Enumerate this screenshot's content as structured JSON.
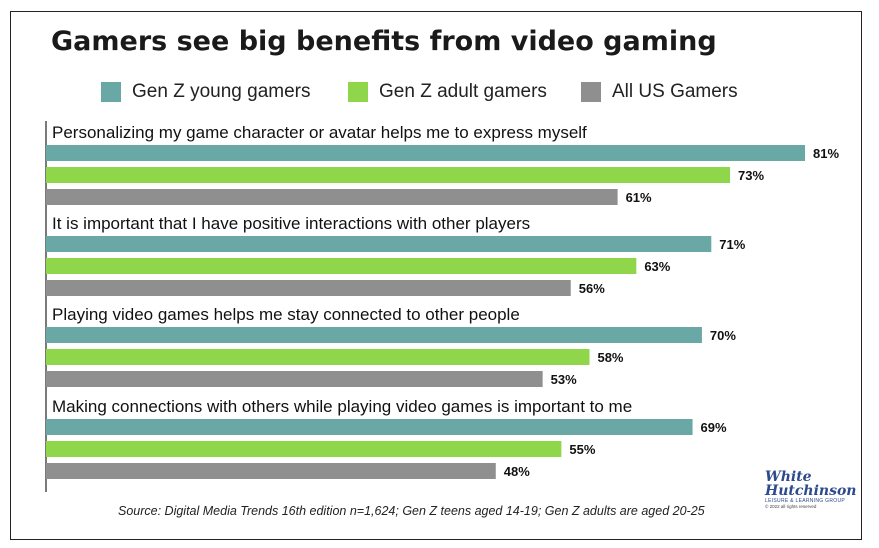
{
  "chart_data": {
    "type": "bar",
    "orientation": "horizontal",
    "title": "Gamers see big benefits from video gaming",
    "categories": [
      "Personalizing my game character or avatar helps me to express myself",
      "It is important that I have positive interactions with other players",
      "Playing video games helps me stay connected to other people",
      "Making connections with others while playing video games is important to me"
    ],
    "series": [
      {
        "name": "Gen Z young gamers",
        "color": "#6aa8a5",
        "values": [
          81,
          71,
          70,
          69
        ]
      },
      {
        "name": "Gen Z adult gamers",
        "color": "#8fd64a",
        "values": [
          73,
          63,
          58,
          55
        ]
      },
      {
        "name": "All US Gamers",
        "color": "#8f8f8f",
        "values": [
          61,
          56,
          53,
          48
        ]
      }
    ],
    "value_suffix": "%",
    "xlim": [
      0,
      100
    ],
    "legend_position": "top",
    "grid": false
  },
  "source": "Source: Digital Media Trends 16th edition n=1,624;  Gen Z teens aged 14-19; Gen Z adults are aged 20-25",
  "logo": {
    "line1": "White",
    "line2": "Hutchinson",
    "tagline": "LEISURE & LEARNING GROUP",
    "copyright": "© 2022 all rights reserved"
  }
}
